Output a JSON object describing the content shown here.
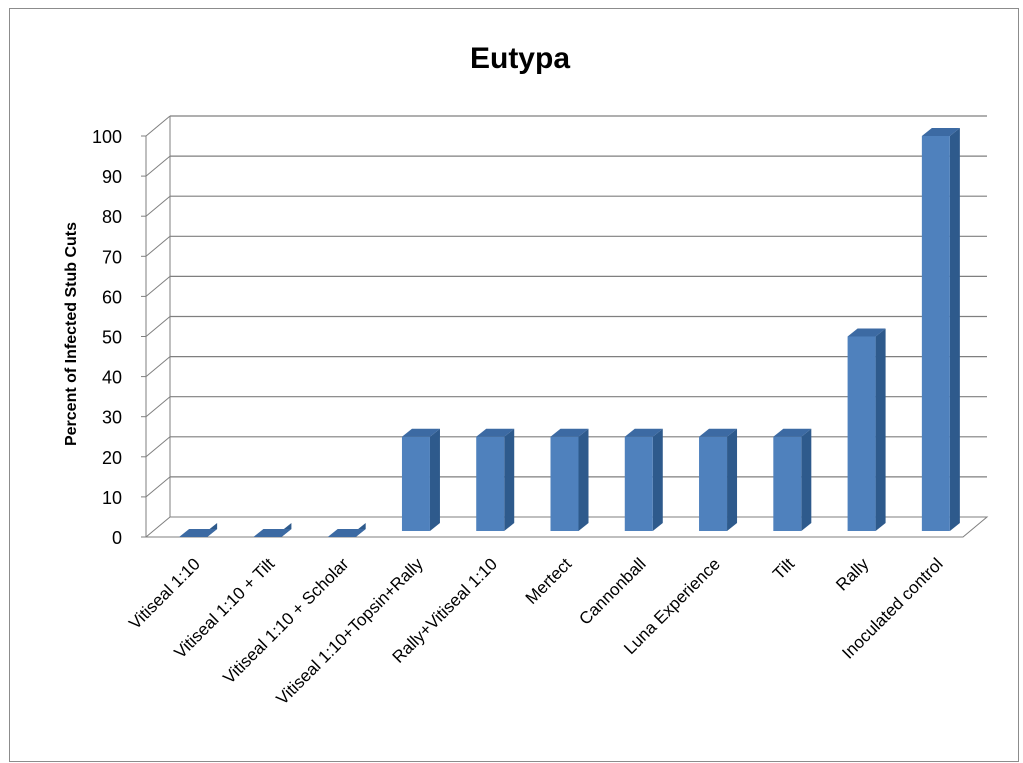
{
  "chart_data": {
    "type": "bar",
    "title": "Eutypa",
    "ylabel": "Percent of Infected Stub Cuts",
    "xlabel": "",
    "ylim": [
      0,
      100
    ],
    "yticks": [
      0,
      10,
      20,
      30,
      40,
      50,
      60,
      70,
      80,
      90,
      100
    ],
    "categories": [
      "Vitiseal 1:10",
      "Vitiseal 1:10 + Tilt",
      "Vitiseal 1:10 + Scholar",
      "Vitiseal 1:10+Topsin+Rally",
      "Rally+Vitiseal 1:10",
      "Mertect",
      "Cannonball",
      "Luna Experience",
      "Tilt",
      "Rally",
      "Inoculated control"
    ],
    "values": [
      0,
      0,
      0,
      25,
      25,
      25,
      25,
      25,
      25,
      50,
      100
    ],
    "grid": true,
    "legend": "none",
    "colors": {
      "bar_front": "#4f81bd",
      "bar_side": "#2e5a8c",
      "bar_top": "#3c6aa3",
      "grid": "#7f7f7f",
      "floor": "#bfbfbf"
    }
  }
}
